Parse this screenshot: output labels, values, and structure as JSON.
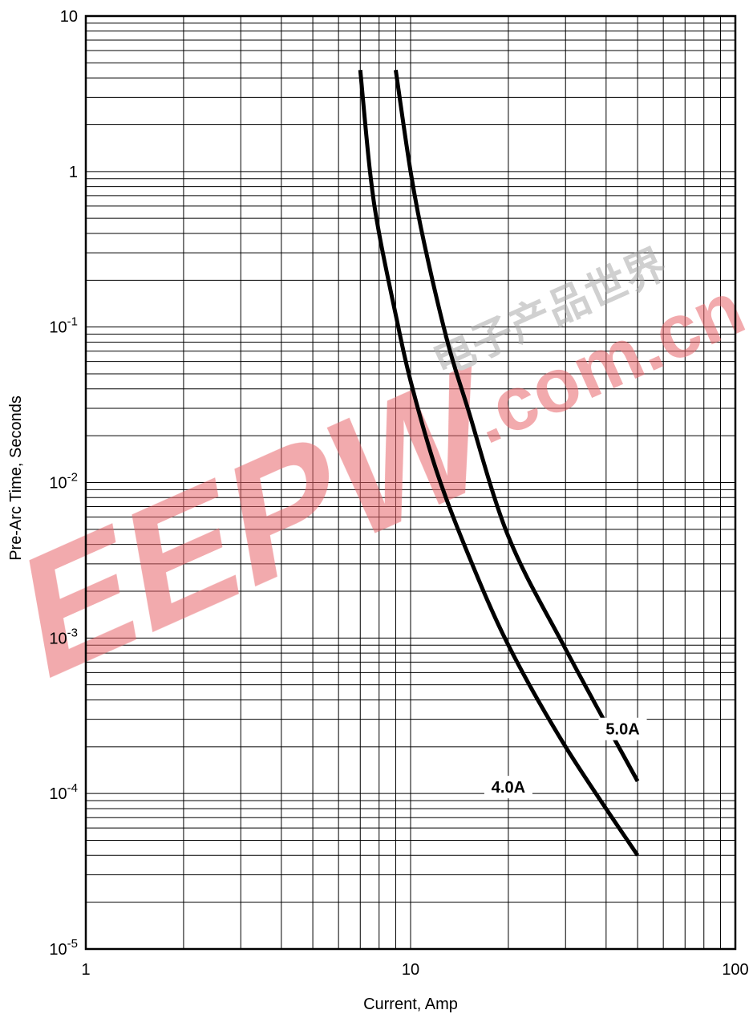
{
  "chart_data": {
    "type": "line",
    "xlabel": "Current, Amp",
    "ylabel": "Pre-Arc Time, Seconds",
    "x_scale": "log",
    "y_scale": "log",
    "xlim": [
      1,
      100
    ],
    "ylim": [
      1e-05,
      10
    ],
    "grid": true,
    "x_ticks": [
      {
        "value": 1,
        "label": "1"
      },
      {
        "value": 10,
        "label": "10"
      },
      {
        "value": 100,
        "label": "100"
      }
    ],
    "y_ticks": [
      {
        "value": 10,
        "base": "10",
        "exp": ""
      },
      {
        "value": 1,
        "base": "1",
        "exp": ""
      },
      {
        "value": 0.1,
        "base": "10",
        "exp": "-1"
      },
      {
        "value": 0.01,
        "base": "10",
        "exp": "-2"
      },
      {
        "value": 0.001,
        "base": "10",
        "exp": "-3"
      },
      {
        "value": 0.0001,
        "base": "10",
        "exp": "-4"
      },
      {
        "value": 1e-05,
        "base": "10",
        "exp": "-5"
      }
    ],
    "series": [
      {
        "name": "4.0A",
        "x": [
          7.0,
          7.5,
          8.0,
          9.0,
          10.0,
          12.0,
          15.0,
          20.0,
          30.0,
          50.0
        ],
        "y": [
          4.5,
          1.0,
          0.4,
          0.12,
          0.045,
          0.012,
          0.0035,
          0.0009,
          0.0002,
          4e-05
        ]
      },
      {
        "name": "5.0A",
        "x": [
          9.0,
          10.0,
          11.0,
          13.0,
          15.0,
          20.0,
          30.0,
          50.0
        ],
        "y": [
          4.5,
          1.0,
          0.35,
          0.08,
          0.03,
          0.0045,
          0.00085,
          0.00012
        ]
      }
    ],
    "colors": {
      "line": "#000000",
      "grid": "#000000",
      "watermark": "#e8646a"
    }
  },
  "watermark": {
    "logo_text": "EEPW",
    "domain_text": ".com.cn",
    "chinese_text": "电子产品世界"
  }
}
